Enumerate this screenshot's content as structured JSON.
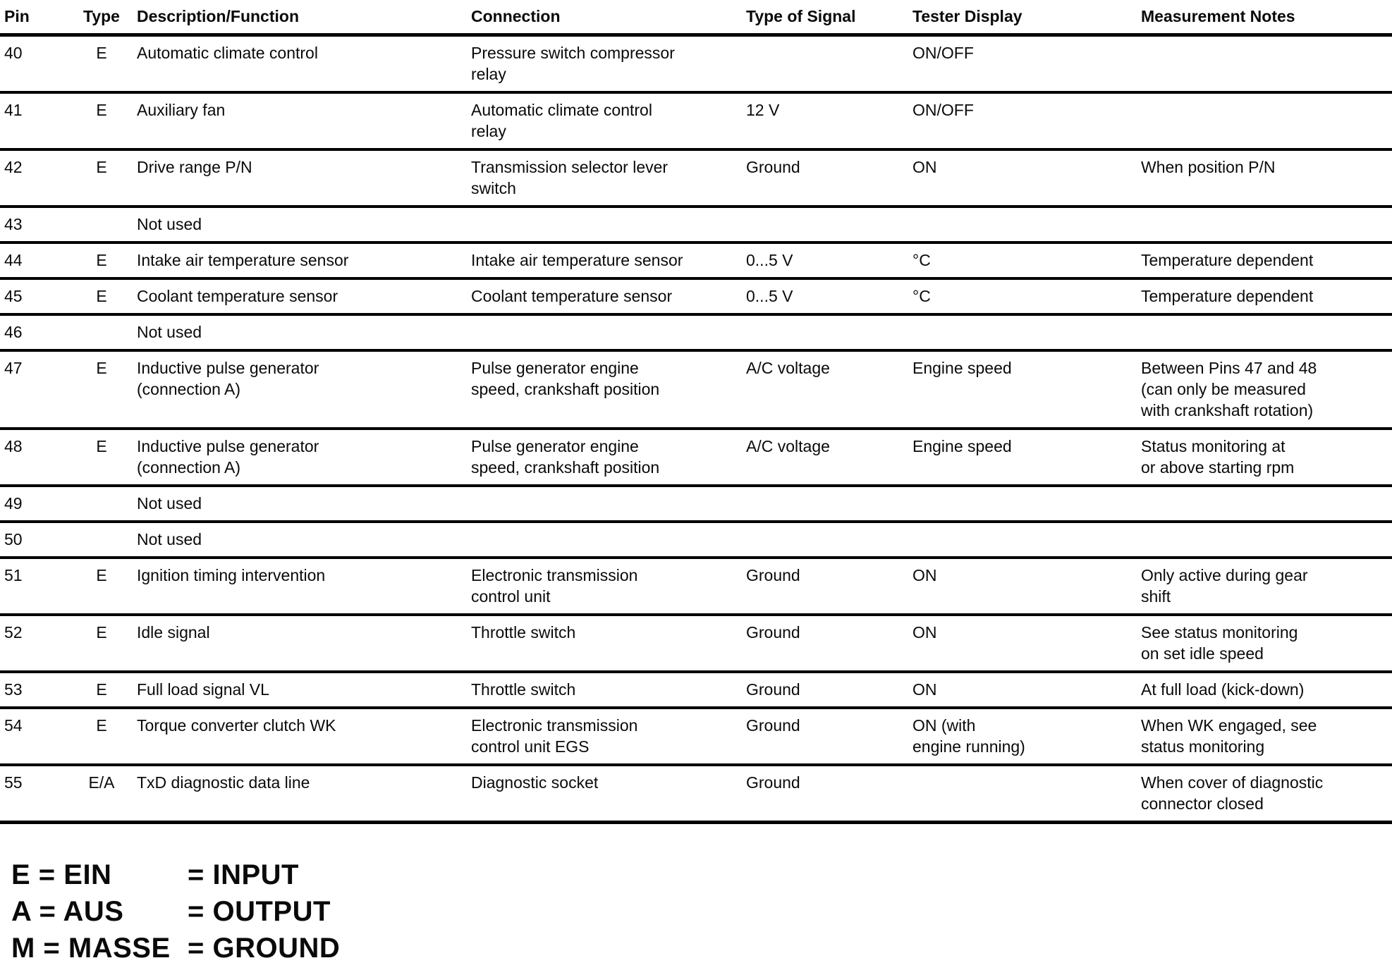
{
  "table": {
    "columns": {
      "pin": "Pin",
      "type": "Type",
      "description": "Description/Function",
      "connection": "Connection",
      "signal": "Type of Signal",
      "tester": "Tester Display",
      "notes": "Measurement Notes"
    },
    "rows": [
      {
        "pin": "40",
        "type": "E",
        "description": "Automatic climate control",
        "connection": "Pressure switch compressor\nrelay",
        "signal": "",
        "tester": "ON/OFF",
        "notes": ""
      },
      {
        "pin": "41",
        "type": "E",
        "description": "Auxiliary fan",
        "connection": "Automatic climate control\nrelay",
        "signal": "12 V",
        "tester": "ON/OFF",
        "notes": ""
      },
      {
        "pin": "42",
        "type": "E",
        "description": "Drive range P/N",
        "connection": "Transmission selector lever\nswitch",
        "signal": "Ground",
        "tester": "ON",
        "notes": "When position P/N"
      },
      {
        "pin": "43",
        "type": "",
        "description": "Not used",
        "connection": "",
        "signal": "",
        "tester": "",
        "notes": ""
      },
      {
        "pin": "44",
        "type": "E",
        "description": "Intake air temperature sensor",
        "connection": "Intake air temperature sensor",
        "signal": "0...5 V",
        "tester": "°C",
        "notes": "Temperature dependent"
      },
      {
        "pin": "45",
        "type": "E",
        "description": "Coolant temperature sensor",
        "connection": "Coolant temperature sensor",
        "signal": "0...5 V",
        "tester": "°C",
        "notes": "Temperature dependent"
      },
      {
        "pin": "46",
        "type": "",
        "description": "Not used",
        "connection": "",
        "signal": "",
        "tester": "",
        "notes": ""
      },
      {
        "pin": "47",
        "type": "E",
        "description": "Inductive pulse generator\n(connection A)",
        "connection": "Pulse generator engine\nspeed, crankshaft position",
        "signal": "A/C voltage",
        "tester": "Engine speed",
        "notes": "Between Pins 47 and 48\n(can only be measured\nwith crankshaft rotation)"
      },
      {
        "pin": "48",
        "type": "E",
        "description": "Inductive pulse generator\n(connection A)",
        "connection": "Pulse generator engine\nspeed, crankshaft position",
        "signal": "A/C voltage",
        "tester": "Engine speed",
        "notes": "Status monitoring at\nor above starting rpm"
      },
      {
        "pin": "49",
        "type": "",
        "description": "Not used",
        "connection": "",
        "signal": "",
        "tester": "",
        "notes": ""
      },
      {
        "pin": "50",
        "type": "",
        "description": "Not used",
        "connection": "",
        "signal": "",
        "tester": "",
        "notes": ""
      },
      {
        "pin": "51",
        "type": "E",
        "description": "Ignition timing intervention",
        "connection": "Electronic transmission\ncontrol unit",
        "signal": "Ground",
        "tester": "ON",
        "notes": "Only active during gear\nshift"
      },
      {
        "pin": "52",
        "type": "E",
        "description": "Idle signal",
        "connection": "Throttle switch",
        "signal": "Ground",
        "tester": "ON",
        "notes": "See status monitoring\non set idle speed"
      },
      {
        "pin": "53",
        "type": "E",
        "description": "Full load signal VL",
        "connection": "Throttle switch",
        "signal": "Ground",
        "tester": "ON",
        "notes": "At full load (kick-down)"
      },
      {
        "pin": "54",
        "type": "E",
        "description": "Torque converter clutch WK",
        "connection": "Electronic transmission\ncontrol unit EGS",
        "signal": "Ground",
        "tester": "ON (with\nengine running)",
        "notes": "When WK engaged, see\nstatus monitoring"
      },
      {
        "pin": "55",
        "type": "E/A",
        "description": "TxD diagnostic data line",
        "connection": "Diagnostic socket",
        "signal": "Ground",
        "tester": "",
        "notes": "When cover of diagnostic\nconnector closed"
      }
    ]
  },
  "legend": [
    {
      "abbr": "E = EIN",
      "meaning": "= INPUT"
    },
    {
      "abbr": "A = AUS",
      "meaning": "= OUTPUT"
    },
    {
      "abbr": "M = MASSE",
      "meaning": "= GROUND"
    }
  ],
  "colors": {
    "text": "#0a0a0a",
    "rule": "#000000",
    "background": "#ffffff"
  }
}
